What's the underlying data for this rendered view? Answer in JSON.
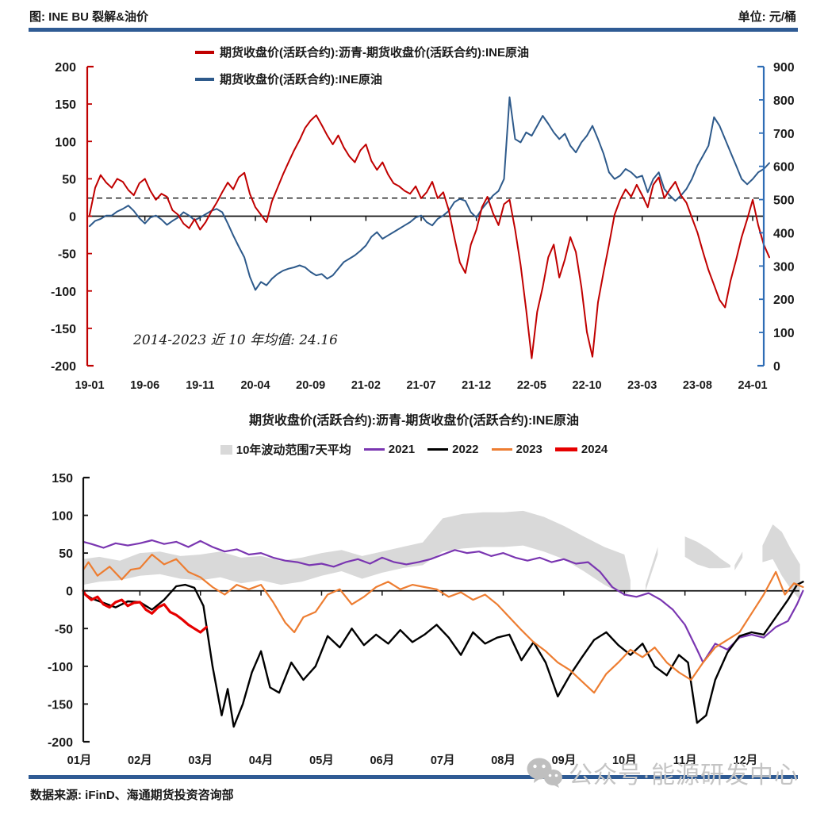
{
  "header": {
    "title": "图: INE BU 裂解&油价",
    "unit": "单位: 元/桶",
    "divider_color": "#2F5B94"
  },
  "footer": {
    "source": "数据来源: iFinD、海通期货投资咨询部"
  },
  "watermark": {
    "text": "公众号·能源研发中心",
    "icon": "wechat-icon",
    "color": "#C4C4C4"
  },
  "chart_data": [
    {
      "type": "line",
      "title": "",
      "legend": [
        {
          "label": "期货收盘价(活跃合约):沥青-期货收盘价(活跃合约):INE原油",
          "color": "#C00000"
        },
        {
          "label": "期货收盘价(活跃合约):INE原油",
          "color": "#2E5A8B"
        }
      ],
      "x_ticks": [
        "19-01",
        "19-06",
        "19-11",
        "20-04",
        "20-09",
        "21-02",
        "21-07",
        "21-12",
        "22-05",
        "22-10",
        "23-03",
        "23-08",
        "24-01"
      ],
      "left_axis": {
        "min": -200,
        "max": 200,
        "ticks": [
          200,
          150,
          100,
          50,
          0,
          -50,
          -100,
          -150,
          -200
        ],
        "color": "#C00000"
      },
      "right_axis": {
        "min": 0,
        "max": 900,
        "ticks": [
          900,
          800,
          700,
          600,
          500,
          400,
          300,
          200,
          100,
          0
        ],
        "color": "#2F6DB5"
      },
      "mean_line": {
        "value": 24.16,
        "label": "2014-2023 近 10 年均值: 24.16",
        "style": "dashed"
      },
      "grid": false,
      "legend_position": "top-center",
      "series": [
        {
          "name": "期货收盘价(活跃合约):沥青-期货收盘价(活跃合约):INE原油",
          "axis": "left",
          "color": "#C00000",
          "step_months": 0.5,
          "values": [
            2,
            38,
            55,
            45,
            38,
            50,
            46,
            35,
            28,
            44,
            50,
            34,
            22,
            30,
            26,
            8,
            2,
            -10,
            -16,
            -4,
            -18,
            -8,
            6,
            18,
            32,
            45,
            36,
            52,
            58,
            30,
            12,
            2,
            -8,
            20,
            38,
            56,
            72,
            88,
            102,
            118,
            128,
            135,
            122,
            108,
            96,
            108,
            92,
            80,
            72,
            88,
            96,
            74,
            62,
            72,
            56,
            44,
            40,
            34,
            30,
            40,
            24,
            32,
            46,
            24,
            32,
            8,
            -28,
            -62,
            -76,
            -38,
            -18,
            12,
            26,
            4,
            -12,
            16,
            22,
            -18,
            -65,
            -125,
            -190,
            -128,
            -95,
            -55,
            -38,
            -82,
            -58,
            -28,
            -48,
            -95,
            -155,
            -188,
            -115,
            -75,
            -38,
            2,
            22,
            36,
            26,
            42,
            28,
            12,
            42,
            52,
            24,
            36,
            46,
            28,
            18,
            -2,
            -22,
            -48,
            -72,
            -92,
            -112,
            -122,
            -86,
            -58,
            -28,
            -4,
            22,
            -12,
            -38,
            -55
          ]
        },
        {
          "name": "期货收盘价(活跃合约):INE原油",
          "axis": "right",
          "color": "#2E5A8B",
          "step_months": 0.5,
          "values": [
            420,
            436,
            442,
            452,
            452,
            464,
            472,
            482,
            466,
            444,
            428,
            446,
            452,
            440,
            424,
            436,
            446,
            462,
            452,
            438,
            446,
            456,
            466,
            472,
            462,
            428,
            392,
            358,
            326,
            268,
            228,
            252,
            242,
            262,
            276,
            286,
            292,
            296,
            302,
            296,
            282,
            272,
            276,
            262,
            272,
            292,
            312,
            322,
            332,
            346,
            362,
            388,
            402,
            382,
            392,
            402,
            412,
            422,
            432,
            446,
            452,
            432,
            422,
            442,
            452,
            466,
            492,
            502,
            496,
            462,
            446,
            472,
            492,
            512,
            526,
            562,
            808,
            682,
            672,
            702,
            692,
            722,
            752,
            728,
            702,
            682,
            698,
            662,
            642,
            672,
            692,
            722,
            682,
            638,
            582,
            562,
            572,
            592,
            582,
            566,
            572,
            522,
            562,
            582,
            532,
            512,
            496,
            512,
            532,
            562,
            602,
            632,
            662,
            748,
            722,
            682,
            642,
            602,
            562,
            546,
            562,
            582,
            592,
            610
          ]
        }
      ]
    },
    {
      "type": "line",
      "title": "期货收盘价(活跃合约):沥青-期货收盘价(活跃合约):INE原油",
      "x_ticks": [
        "01月",
        "02月",
        "03月",
        "04月",
        "05月",
        "06月",
        "07月",
        "08月",
        "09月",
        "10月",
        "11月",
        "12月"
      ],
      "y_axis": {
        "min": -200,
        "max": 150,
        "ticks": [
          150,
          100,
          50,
          0,
          -50,
          -100,
          -150,
          -200
        ],
        "color": "#000000"
      },
      "grid": false,
      "legend_position": "top-center",
      "band": {
        "name": "10年波动范围7天平均",
        "color": "#D9D9D9",
        "segments": [
          {
            "x": [
              0,
              0.33,
              0.67,
              1,
              1.33,
              1.67,
              2,
              2.33,
              2.67,
              3,
              3.33,
              3.67,
              4,
              4.33,
              4.67,
              5,
              5.33,
              5.67,
              6,
              6.33,
              6.67,
              7,
              7.33,
              7.67,
              8,
              8.33,
              8.67,
              9,
              9.1
            ],
            "upper": [
              42,
              45,
              40,
              50,
              52,
              46,
              48,
              52,
              44,
              46,
              40,
              44,
              50,
              54,
              46,
              52,
              58,
              64,
              96,
              102,
              104,
              104,
              106,
              98,
              86,
              72,
              58,
              48,
              14
            ],
            "lower": [
              8,
              12,
              14,
              20,
              22,
              16,
              14,
              18,
              10,
              14,
              8,
              12,
              20,
              26,
              16,
              24,
              30,
              34,
              52,
              56,
              58,
              58,
              60,
              52,
              42,
              26,
              8,
              -6,
              0
            ]
          },
          {
            "x": [
              9.35,
              9.55
            ],
            "upper": [
              8,
              58
            ],
            "lower": [
              0,
              48
            ]
          },
          {
            "x": [
              10.0,
              10.2,
              10.4,
              10.6,
              10.75
            ],
            "upper": [
              72,
              65,
              55,
              42,
              34
            ],
            "lower": [
              45,
              35,
              30,
              30,
              31
            ]
          },
          {
            "x": [
              10.82,
              10.95
            ],
            "upper": [
              34,
              52
            ],
            "lower": [
              27,
              44
            ]
          },
          {
            "x": [
              11.28,
              11.45,
              11.6,
              11.75,
              11.9
            ],
            "upper": [
              60,
              88,
              78,
              55,
              35
            ],
            "lower": [
              38,
              42,
              20,
              2,
              -12
            ]
          }
        ]
      },
      "series": [
        {
          "name": "2021",
          "color": "#7A36B1",
          "width": 2.2,
          "x": [
            0,
            0.2,
            0.4,
            0.6,
            0.8,
            1.0,
            1.2,
            1.4,
            1.6,
            1.8,
            2.0,
            2.2,
            2.4,
            2.6,
            2.8,
            3.0,
            3.2,
            3.4,
            3.6,
            3.8,
            4.0,
            4.2,
            4.4,
            4.6,
            4.8,
            5.0,
            5.2,
            5.4,
            5.6,
            5.8,
            6.0,
            6.2,
            6.4,
            6.6,
            6.8,
            7.0,
            7.2,
            7.4,
            7.6,
            7.8,
            8.0,
            8.2,
            8.4,
            8.6,
            8.8,
            9.0,
            9.2,
            9.4,
            9.6,
            9.8,
            10.0,
            10.2,
            10.3,
            10.5,
            10.7,
            10.9,
            11.1,
            11.3,
            11.5,
            11.7,
            11.85,
            11.95
          ],
          "y": [
            65,
            62,
            57,
            63,
            60,
            63,
            67,
            62,
            65,
            58,
            66,
            58,
            52,
            55,
            48,
            50,
            44,
            40,
            38,
            34,
            36,
            32,
            38,
            42,
            36,
            44,
            38,
            35,
            38,
            42,
            48,
            54,
            50,
            52,
            46,
            50,
            44,
            40,
            44,
            38,
            42,
            36,
            38,
            25,
            5,
            -5,
            -8,
            -3,
            -12,
            -25,
            -45,
            -78,
            -95,
            -70,
            -78,
            -62,
            -58,
            -62,
            -48,
            -40,
            -18,
            0
          ]
        },
        {
          "name": "2022",
          "color": "#000000",
          "width": 2.4,
          "x": [
            0,
            0.2,
            0.4,
            0.6,
            0.8,
            1.0,
            1.2,
            1.4,
            1.6,
            1.75,
            1.9,
            2.05,
            2.2,
            2.35,
            2.45,
            2.55,
            2.7,
            2.85,
            3.0,
            3.15,
            3.3,
            3.5,
            3.7,
            3.9,
            4.1,
            4.3,
            4.5,
            4.7,
            4.9,
            5.1,
            5.3,
            5.5,
            5.7,
            5.9,
            6.1,
            6.3,
            6.5,
            6.7,
            6.9,
            7.1,
            7.3,
            7.5,
            7.7,
            7.9,
            8.1,
            8.3,
            8.5,
            8.7,
            8.9,
            9.1,
            9.3,
            9.5,
            9.7,
            9.9,
            10.05,
            10.2,
            10.35,
            10.5,
            10.7,
            10.9,
            11.1,
            11.3,
            11.5,
            11.7,
            11.85,
            11.95
          ],
          "y": [
            -3,
            -10,
            -16,
            -22,
            -14,
            -15,
            -25,
            -12,
            6,
            8,
            4,
            -20,
            -100,
            -165,
            -130,
            -180,
            -150,
            -108,
            -80,
            -128,
            -135,
            -95,
            -118,
            -100,
            -60,
            -75,
            -50,
            -72,
            -58,
            -70,
            -52,
            -68,
            -58,
            -45,
            -62,
            -85,
            -55,
            -70,
            -62,
            -58,
            -92,
            -68,
            -95,
            -140,
            -112,
            -88,
            -65,
            -55,
            -72,
            -85,
            -70,
            -100,
            -112,
            -85,
            -95,
            -175,
            -165,
            -118,
            -82,
            -60,
            -55,
            -58,
            -35,
            -12,
            8,
            12
          ]
        },
        {
          "name": "2023",
          "color": "#ED7D31",
          "width": 2.2,
          "x": [
            0,
            0.15,
            0.3,
            0.5,
            0.7,
            0.85,
            1.0,
            1.2,
            1.4,
            1.6,
            1.8,
            2.0,
            2.2,
            2.4,
            2.6,
            2.8,
            3.0,
            3.2,
            3.4,
            3.55,
            3.7,
            3.9,
            4.1,
            4.3,
            4.5,
            4.7,
            4.9,
            5.1,
            5.3,
            5.5,
            5.7,
            5.9,
            6.1,
            6.3,
            6.5,
            6.7,
            6.9,
            7.1,
            7.3,
            7.5,
            7.7,
            7.9,
            8.1,
            8.3,
            8.5,
            8.7,
            8.9,
            9.1,
            9.3,
            9.5,
            9.7,
            9.9,
            10.1,
            10.3,
            10.5,
            10.7,
            10.9,
            11.1,
            11.3,
            11.5,
            11.65,
            11.8,
            11.95
          ],
          "y": [
            28,
            38,
            20,
            32,
            15,
            28,
            30,
            48,
            35,
            42,
            25,
            18,
            5,
            -5,
            8,
            2,
            8,
            -15,
            -42,
            -55,
            -35,
            -28,
            -5,
            2,
            -18,
            -8,
            5,
            12,
            2,
            8,
            5,
            2,
            -8,
            -2,
            -12,
            -5,
            -18,
            -35,
            -52,
            -68,
            -80,
            -95,
            -105,
            -120,
            -135,
            -110,
            -95,
            -78,
            -88,
            -75,
            -95,
            -108,
            -118,
            -95,
            -75,
            -65,
            -55,
            -30,
            -5,
            25,
            -5,
            10,
            5
          ]
        },
        {
          "name": "2024",
          "color": "#E60000",
          "width": 3.2,
          "x": [
            0,
            0.1,
            0.2,
            0.3,
            0.4,
            0.5,
            0.6,
            0.7,
            0.8,
            0.9,
            1.0,
            1.1,
            1.2,
            1.3,
            1.4,
            1.5,
            1.6,
            1.7,
            1.8,
            1.9,
            2.0,
            2.1
          ],
          "y": [
            0,
            -5,
            -12,
            -8,
            -18,
            -22,
            -15,
            -12,
            -20,
            -16,
            -15,
            -25,
            -30,
            -22,
            -18,
            -28,
            -32,
            -38,
            -45,
            -50,
            -55,
            -48
          ]
        }
      ]
    }
  ]
}
